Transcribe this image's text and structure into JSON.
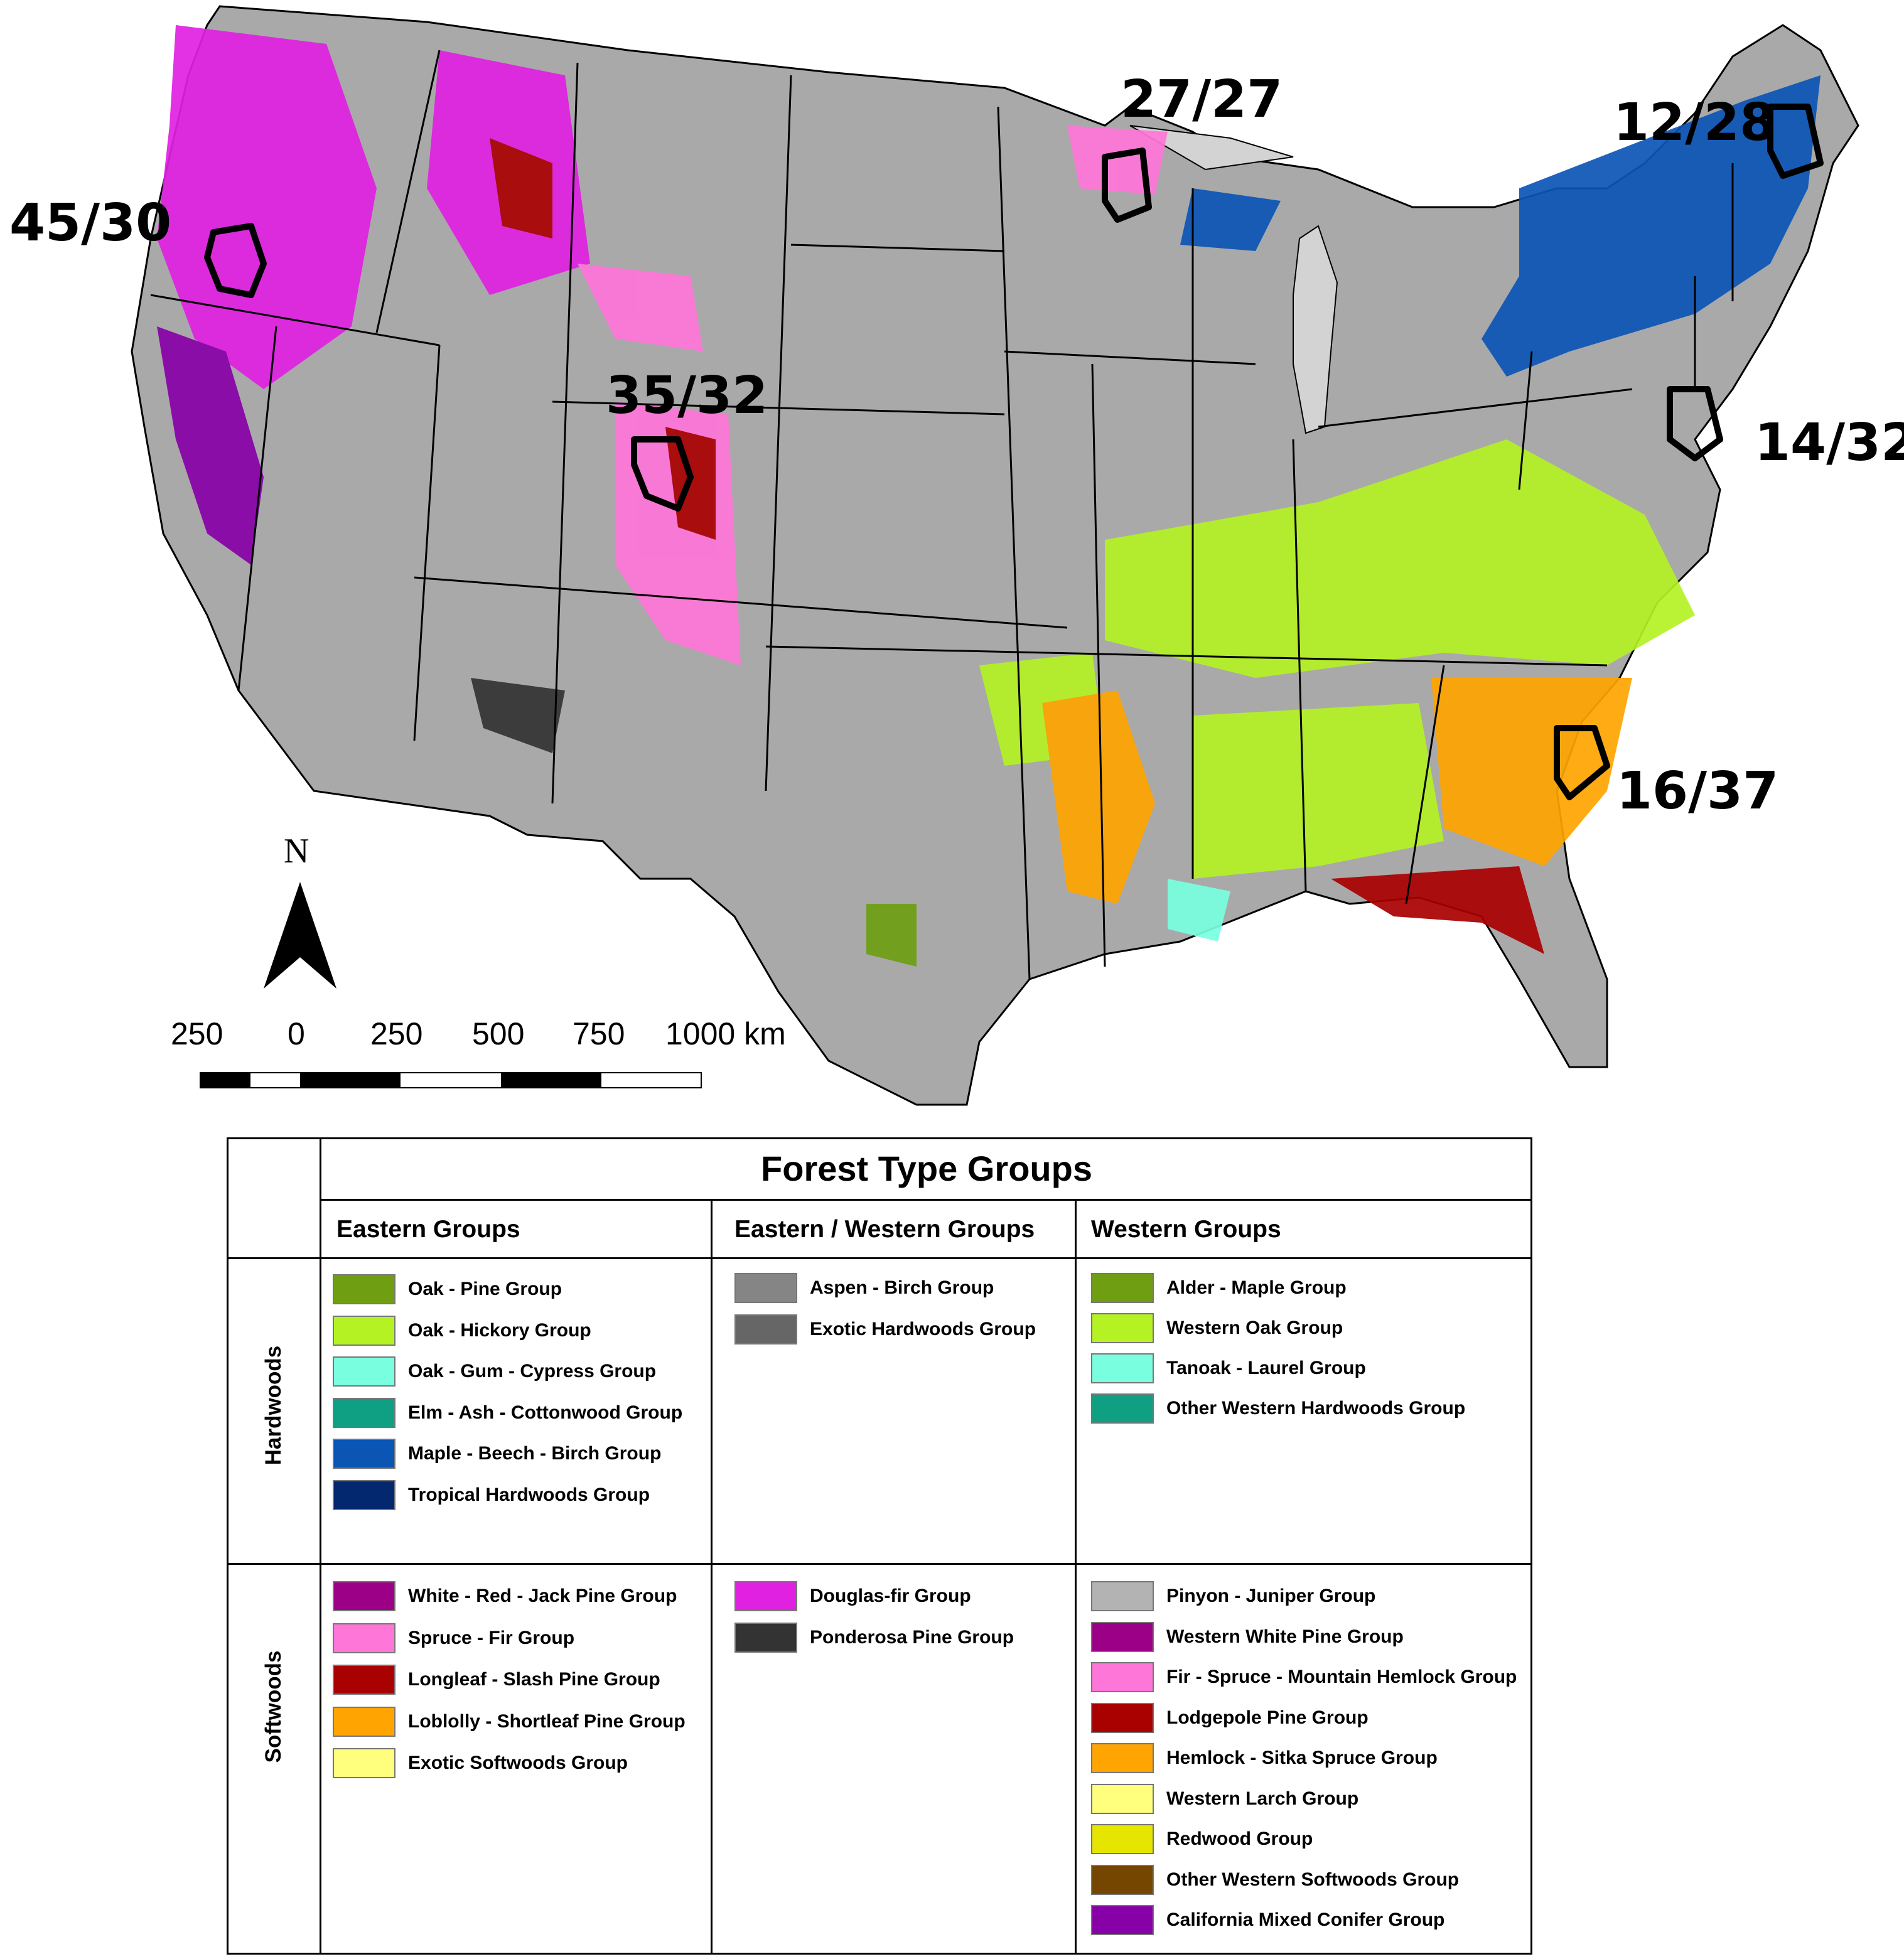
{
  "site_labels": [
    "27/27",
    "12/28",
    "45/30",
    "35/32",
    "14/32",
    "16/37"
  ],
  "north_label": "N",
  "scale": [
    "250",
    "0",
    "250",
    "500",
    "750",
    "1000 km"
  ],
  "legend": {
    "title": "Forest Type Groups",
    "columns": [
      "Eastern Groups",
      "Eastern / Western Groups",
      "Western Groups"
    ],
    "rows": [
      "Hardwoods",
      "Softwoods"
    ],
    "hardwoods": {
      "eastern": [
        {
          "label": "Oak - Pine Group",
          "color": "#6f9e13"
        },
        {
          "label": "Oak - Hickory Group",
          "color": "#b4f224"
        },
        {
          "label": "Oak - Gum - Cypress Group",
          "color": "#79ffe0"
        },
        {
          "label": "Elm - Ash - Cottonwood Group",
          "color": "#0fa083"
        },
        {
          "label": "Maple - Beech - Birch Group",
          "color": "#0b55b5"
        },
        {
          "label": "Tropical Hardwoods Group",
          "color": "#03286f"
        }
      ],
      "eastern_western": [
        {
          "label": "Aspen - Birch Group",
          "color": "#858585"
        },
        {
          "label": "Exotic Hardwoods Group",
          "color": "#666666"
        }
      ],
      "western": [
        {
          "label": "Alder - Maple Group",
          "color": "#6f9e13"
        },
        {
          "label": "Western Oak Group",
          "color": "#b4f224"
        },
        {
          "label": "Tanoak - Laurel Group",
          "color": "#79ffe0"
        },
        {
          "label": "Other Western Hardwoods Group",
          "color": "#0fa083"
        }
      ]
    },
    "softwoods": {
      "eastern": [
        {
          "label": "White - Red - Jack Pine Group",
          "color": "#9c0087"
        },
        {
          "label": "Spruce - Fir Group",
          "color": "#ff76d9"
        },
        {
          "label": "Longleaf - Slash Pine Group",
          "color": "#a90000"
        },
        {
          "label": "Loblolly - Shortleaf Pine Group",
          "color": "#ffa400"
        },
        {
          "label": "Exotic Softwoods Group",
          "color": "#ffff7d"
        }
      ],
      "eastern_western": [
        {
          "label": "Douglas-fir Group",
          "color": "#e021e2"
        },
        {
          "label": "Ponderosa Pine Group",
          "color": "#333333"
        }
      ],
      "western": [
        {
          "label": "Pinyon - Juniper Group",
          "color": "#b3b3b3"
        },
        {
          "label": "Western White Pine Group",
          "color": "#9c0087"
        },
        {
          "label": "Fir - Spruce - Mountain Hemlock Group",
          "color": "#ff76d9"
        },
        {
          "label": "Lodgepole Pine Group",
          "color": "#a90000"
        },
        {
          "label": "Hemlock - Sitka Spruce Group",
          "color": "#ffa400"
        },
        {
          "label": "Western Larch Group",
          "color": "#ffff7d"
        },
        {
          "label": "Redwood Group",
          "color": "#e5e500"
        },
        {
          "label": "Other Western Softwoods Group",
          "color": "#744600"
        },
        {
          "label": "California Mixed Conifer Group",
          "color": "#8800a8"
        }
      ]
    }
  }
}
